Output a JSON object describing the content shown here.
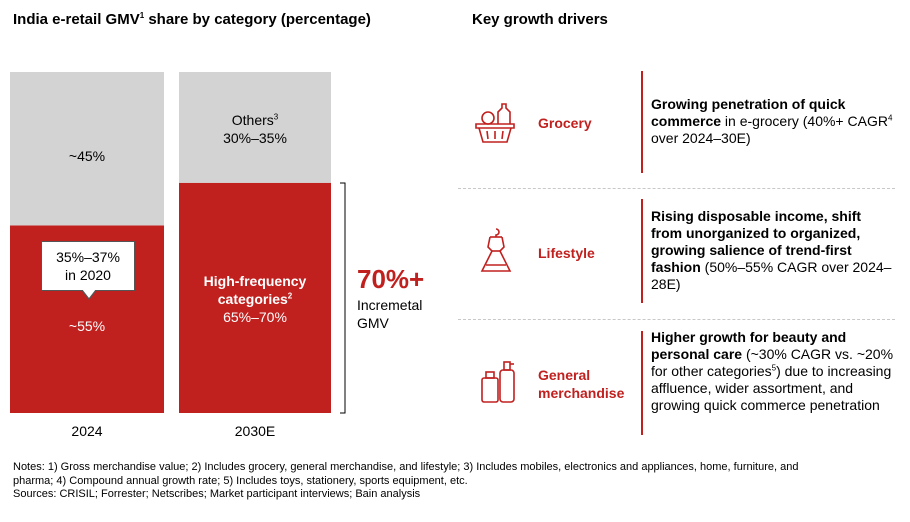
{
  "left_title": {
    "text": "India e-retail GMV",
    "sup": "1",
    "rest": " share by category (percentage)"
  },
  "right_title": "Key growth drivers",
  "colors": {
    "red": "#c0211f",
    "gray": "#d3d3d3"
  },
  "chart_data": {
    "type": "bar",
    "stacked": true,
    "title": "India e-retail GMV share by category (percentage)",
    "categories": [
      "2024",
      "2030E"
    ],
    "ylim": [
      0,
      100
    ],
    "series": [
      {
        "name": "High-frequency categories",
        "values": [
          55,
          67.5
        ],
        "labels": [
          "~55%",
          "65%–70%"
        ]
      },
      {
        "name": "Others",
        "values": [
          45,
          32.5
        ],
        "labels": [
          "~45%",
          "30%–35%"
        ]
      }
    ],
    "annotations": {
      "callout_line1": "35%–37%",
      "callout_line2": "in 2020",
      "others_label": "Others",
      "others_sup": "3",
      "hf_label_line1": "High-frequency",
      "hf_label_line2": "categories",
      "hf_sup": "2",
      "increment_value": "70%+",
      "increment_line1": "Incremetal",
      "increment_line2": "GMV"
    }
  },
  "drivers": [
    {
      "label_lines": [
        "Grocery"
      ],
      "icon": "grocery-basket-icon",
      "desc_html": "<b>Growing penetration of quick commerce</b> in e-grocery (40%+ CAGR<sup>4</sup> over 2024–30E)"
    },
    {
      "label_lines": [
        "Lifestyle"
      ],
      "icon": "dress-hanger-icon",
      "desc_html": "<b>Rising disposable income, shift from unorganized to organized, growing salience of trend-first fashion</b> (50%–55% CAGR over 2024–28E)"
    },
    {
      "label_lines": [
        "General",
        "merchandise"
      ],
      "icon": "cosmetics-bottle-icon",
      "desc_html": "<b>Higher growth for beauty and personal care</b> (~30% CAGR vs. ~20% for other categories<sup>5</sup>) due to increasing affluence, wider assortment, and growing quick commerce penetration"
    }
  ],
  "notes": {
    "line1": "Notes: 1) Gross merchandise value; 2) Includes grocery, general merchandise, and lifestyle; 3) Includes mobiles, electronics and appliances, home, furniture, and",
    "line2": "pharma; 4) Compound annual growth rate; 5) Includes toys, stationery, sports equipment, etc.",
    "line3": "Sources: CRISIL; Forrester; Netscribes; Market participant interviews; Bain analysis"
  }
}
